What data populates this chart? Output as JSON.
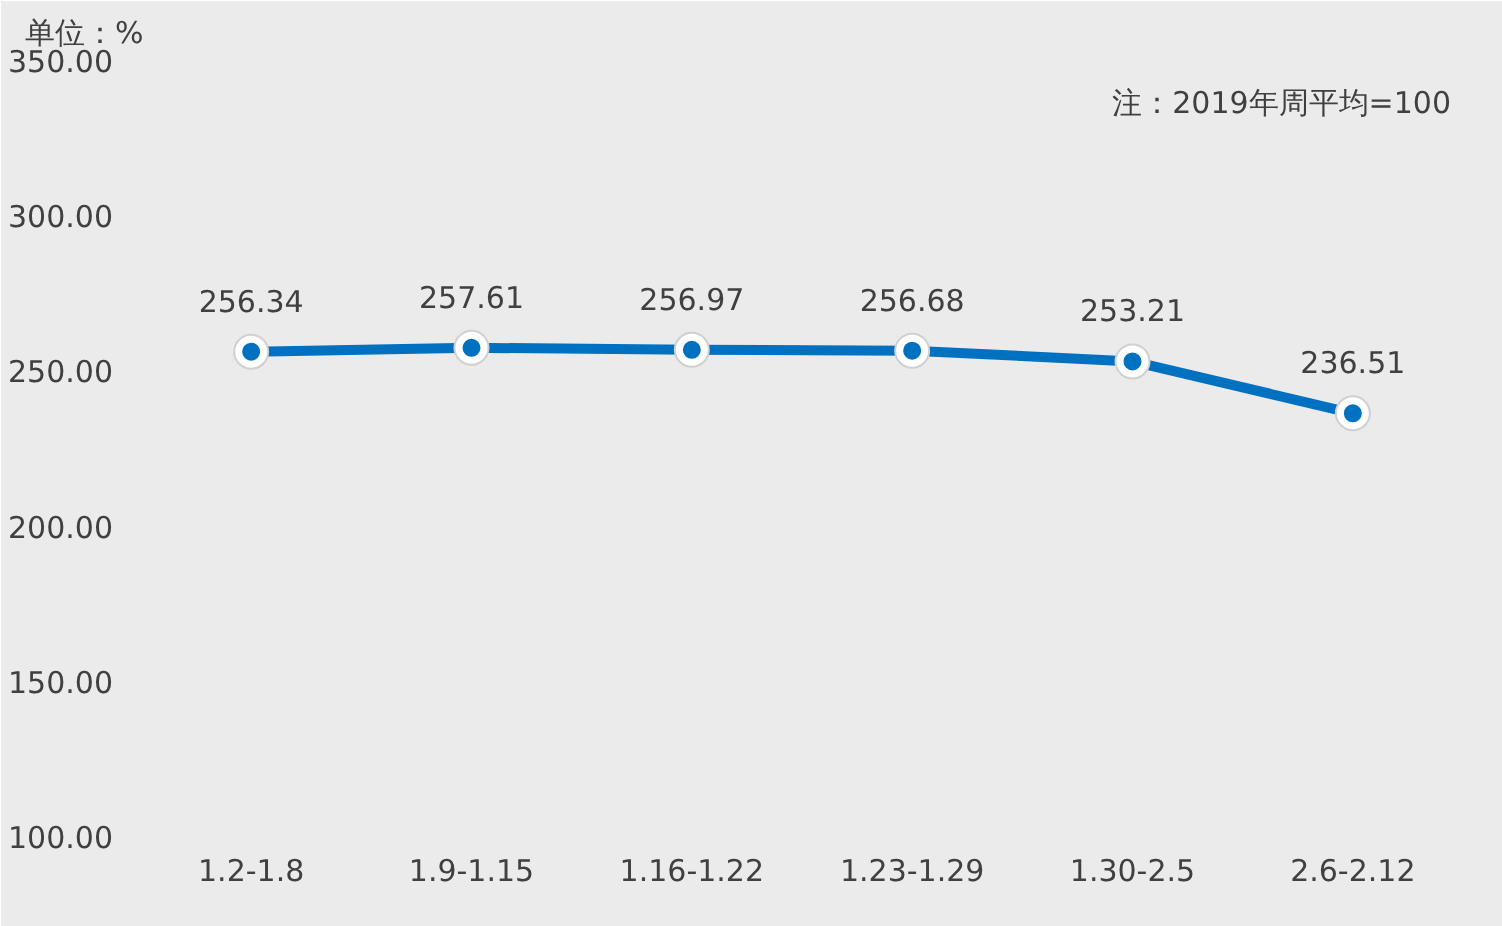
{
  "chart_data": {
    "type": "line",
    "ylabel": "单位：%",
    "annotations": [
      "注：2019年周平均=100"
    ],
    "categories": [
      "1.2-1.8",
      "1.9-1.15",
      "1.16-1.22",
      "1.23-1.29",
      "1.30-2.5",
      "2.6-2.12"
    ],
    "series": [
      {
        "color": "#0070c0",
        "values": [
          256.34,
          257.61,
          256.97,
          256.68,
          253.21,
          236.51
        ]
      }
    ],
    "ylim": [
      100,
      350
    ],
    "yticks": [
      {
        "value": 100,
        "label": "100.00"
      },
      {
        "value": 150,
        "label": "150.00"
      },
      {
        "value": 200,
        "label": "200.00"
      },
      {
        "value": 250,
        "label": "250.00"
      },
      {
        "value": 300,
        "label": "300.00"
      },
      {
        "value": 350,
        "label": "350.00"
      }
    ],
    "data_labels": true,
    "marker": "circle",
    "line_style": "solid"
  }
}
